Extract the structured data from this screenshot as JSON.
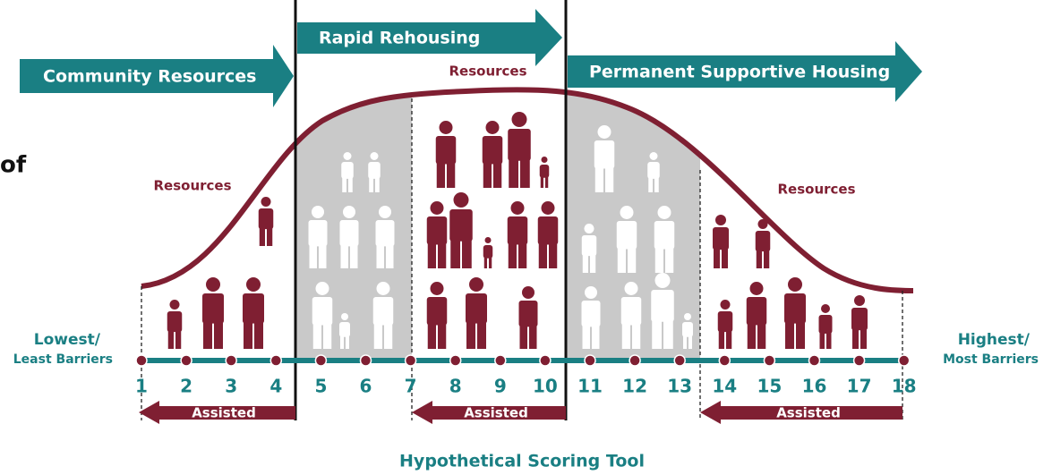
{
  "partial_text": "of",
  "arrows": {
    "community": "Community Resources",
    "rapid": "Rapid Rehousing",
    "permanent": "Permanent Supportive Housing"
  },
  "resources_labels": [
    "Resources",
    "Resources",
    "Resources"
  ],
  "scale": {
    "low": "Lowest/",
    "low_sub": "Least Barriers",
    "high": "Highest/",
    "high_sub": "Most Barriers",
    "points": [
      1,
      2,
      3,
      4,
      5,
      6,
      7,
      8,
      9,
      10,
      11,
      12,
      13,
      14,
      15,
      16,
      17,
      18
    ]
  },
  "assisted": [
    "Assisted",
    "Assisted",
    "Assisted"
  ],
  "footer": "Hypothetical Scoring Tool"
}
